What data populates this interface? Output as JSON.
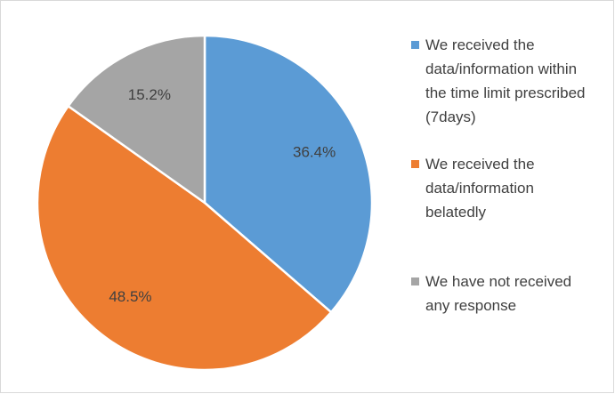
{
  "chart_data": {
    "type": "pie",
    "categories": [
      "We received the data/information within the time limit prescribed (7days)",
      "We received the data/information belatedly",
      "We have not received any response"
    ],
    "values": [
      36.4,
      48.5,
      15.2
    ],
    "value_labels": [
      "36.4%",
      "48.5%",
      "15.2%"
    ],
    "colors": [
      "#5b9bd5",
      "#ed7d31",
      "#a5a5a5"
    ],
    "legend": "right"
  }
}
